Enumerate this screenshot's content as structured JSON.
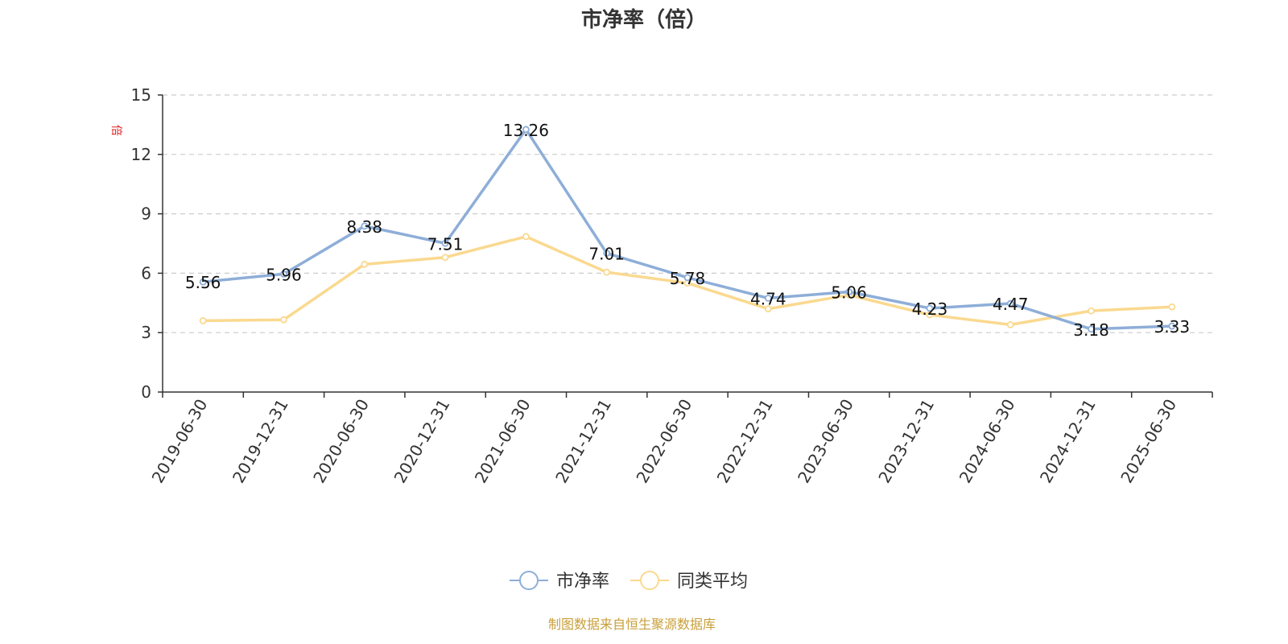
{
  "chart_data": {
    "type": "line",
    "title": "市净率（倍）",
    "unit_label": "倍",
    "x": [
      "2019-06-30",
      "2019-12-31",
      "2020-06-30",
      "2020-12-31",
      "2021-06-30",
      "2021-12-31",
      "2022-06-30",
      "2022-12-31",
      "2023-06-30",
      "2023-12-31",
      "2024-06-30",
      "2024-12-31",
      "2025-06-30"
    ],
    "ylim": [
      0,
      15
    ],
    "yticks": [
      0,
      3,
      6,
      9,
      12,
      15
    ],
    "grid": true,
    "legend_position": "bottom",
    "series": [
      {
        "name": "市净率",
        "color": "#8eaed8",
        "values": [
          5.56,
          5.96,
          8.38,
          7.51,
          13.26,
          7.01,
          5.78,
          4.74,
          5.06,
          4.23,
          4.47,
          3.18,
          3.33
        ],
        "labels": [
          "5.56",
          "5.96",
          "8.38",
          "7.51",
          "13.26",
          "7.01",
          "5.78",
          "4.74",
          "5.06",
          "4.23",
          "4.47",
          "3.18",
          "3.33"
        ]
      },
      {
        "name": "同类平均",
        "color": "#fad98f",
        "values": [
          3.6,
          3.65,
          6.45,
          6.8,
          7.85,
          6.05,
          5.5,
          4.2,
          4.9,
          3.9,
          3.4,
          4.1,
          4.3
        ]
      }
    ]
  },
  "source_note": "制图数据来自恒生聚源数据库"
}
